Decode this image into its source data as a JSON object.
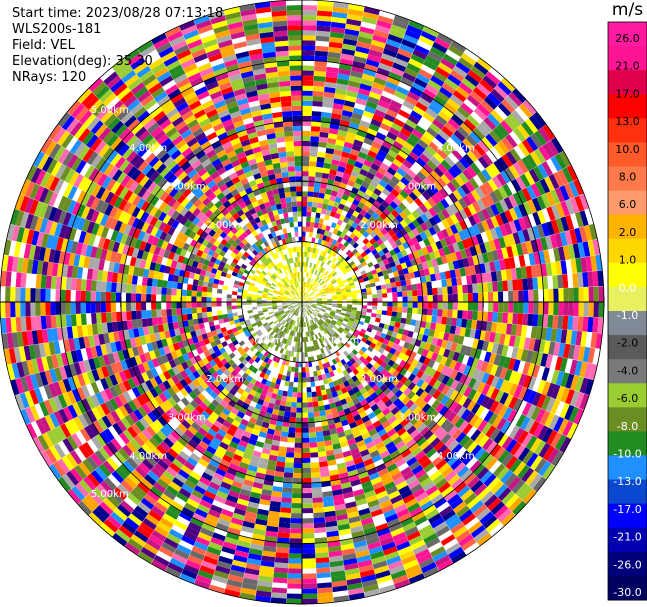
{
  "info": {
    "start_time": "Start time: 2023/08/28 07:13:18",
    "instrument": "WLS200s-181",
    "field": "Field: VEL",
    "elevation": "Elevation(deg): 35.30",
    "nrays": "NRays: 120"
  },
  "chart_data": {
    "type": "heatmap",
    "subtype": "ppi-polar",
    "field": "VEL",
    "nrays": 120,
    "elevation_deg": 35.3,
    "range_max_km": 5.0,
    "ring_labels": [
      {
        "text": "1.00km",
        "range_km": 1.0,
        "angles_deg": [
          225,
          315
        ]
      },
      {
        "text": "2.00km",
        "range_km": 2.0,
        "angles_deg": [
          135,
          225,
          315,
          45
        ]
      },
      {
        "text": "3.00km",
        "range_km": 3.0,
        "angles_deg": [
          135,
          225,
          315,
          45
        ]
      },
      {
        "text": "4.00km",
        "range_km": 4.0,
        "angles_deg": [
          135,
          225,
          315,
          45
        ]
      },
      {
        "text": "5.00km",
        "range_km": 5.0,
        "angles_deg": [
          135,
          225
        ]
      }
    ],
    "colorbar": {
      "unit": "m/s",
      "min": -30.0,
      "max": 30.0,
      "ticks": [
        "26.0",
        "21.0",
        "17.0",
        "13.0",
        "10.0",
        "8.0",
        "6.0",
        "2.0",
        "1.0",
        "0.0",
        "-1.0",
        "-2.0",
        "-4.0",
        "-6.0",
        "-8.0",
        "-10.0",
        "-13.0",
        "-17.0",
        "-21.0",
        "-26.0",
        "-30.0"
      ],
      "colors": [
        "#ff1aa0",
        "#ff1493",
        "#e0004a",
        "#ff0000",
        "#ff3010",
        "#ff5a2a",
        "#ff7a4a",
        "#ff9a6a",
        "#ffb400",
        "#ffd700",
        "#ffff00",
        "#e8f060",
        "#7f8a96",
        "#5a5a5a",
        "#7a7a7a",
        "#9acd32",
        "#6b8e23",
        "#228b22",
        "#1e90ff",
        "#0a48d0",
        "#0000ff",
        "#0000b0",
        "#00007a",
        "#000060"
      ]
    },
    "palette": [
      "#ff1493",
      "#ff69b4",
      "#ff0000",
      "#ff6347",
      "#ffa500",
      "#ffd700",
      "#ffff00",
      "#9acd32",
      "#6b8e23",
      "#228b22",
      "#1e90ff",
      "#0000ff",
      "#00008b",
      "#4b0082",
      "#696969",
      "#a9a9a9",
      "#ffffff",
      "#c71585"
    ]
  }
}
